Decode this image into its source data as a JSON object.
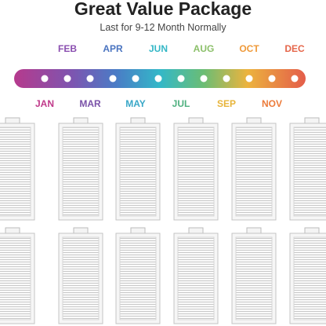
{
  "header": {
    "title": "Great Value Package",
    "subtitle": "Last for 9-12 Month Normally"
  },
  "timeline": {
    "months": [
      "JAN",
      "FEB",
      "MAR",
      "APR",
      "MAY",
      "JUN",
      "JUL",
      "AUG",
      "SEP",
      "OCT",
      "NOV",
      "DEC"
    ]
  }
}
